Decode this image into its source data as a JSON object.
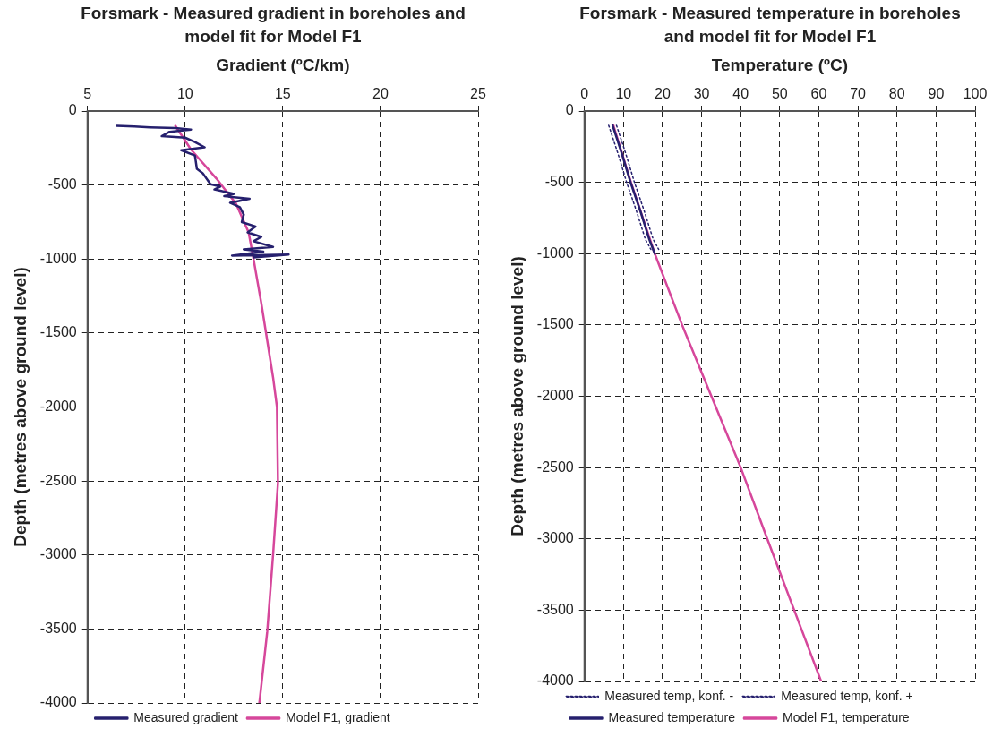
{
  "chart_data": [
    {
      "type": "line",
      "title": "Forsmark - Measured gradient in boreholes and model fit for Model F1",
      "xlabel": "Gradient (ºC/km)",
      "ylabel": "Depth (metres above ground level)",
      "xlim": [
        5,
        25
      ],
      "xticks": [
        5,
        10,
        15,
        20,
        25
      ],
      "ylim": [
        -4000,
        0
      ],
      "yticks": [
        0,
        -500,
        -1000,
        -1500,
        -2000,
        -2500,
        -3000,
        -3500,
        -4000
      ],
      "grid": true,
      "legend": "bottom",
      "marker": "none",
      "series": [
        {
          "name": "Measured gradient",
          "color": "#26206e",
          "x": [
            6.5,
            7.4,
            8.2,
            9.5,
            10.3,
            9.2,
            8.8,
            10.0,
            10.5,
            11.0,
            9.8,
            10.5,
            10.6,
            10.9,
            11.3,
            11.8,
            11.5,
            12.5,
            12.0,
            13.3,
            12.3,
            12.8,
            13.0,
            12.9,
            13.6,
            13.2,
            13.9,
            13.5,
            14.5,
            13.0,
            14.0,
            12.4,
            15.3,
            13.5
          ],
          "values": [
            -100,
            -105,
            -110,
            -115,
            -125,
            -140,
            -170,
            -180,
            -210,
            -245,
            -265,
            -300,
            -390,
            -420,
            -495,
            -510,
            -530,
            -560,
            -575,
            -593,
            -620,
            -650,
            -700,
            -750,
            -780,
            -820,
            -850,
            -880,
            -918,
            -935,
            -950,
            -977,
            -970,
            -990
          ]
        },
        {
          "name": "Model F1, gradient",
          "color": "#d6479b",
          "x": [
            9.5,
            10.3,
            11.6,
            12.6,
            13.25,
            13.5,
            13.9,
            14.5,
            14.7,
            14.75,
            14.5,
            14.2,
            13.8
          ],
          "values": [
            -100,
            -260,
            -456,
            -625,
            -820,
            -1000,
            -1300,
            -1800,
            -2000,
            -2515,
            -3000,
            -3520,
            -4000
          ]
        }
      ]
    },
    {
      "type": "line",
      "title": "Forsmark - Measured temperature in boreholes and model fit for Model F1",
      "xlabel": "Temperature (ºC)",
      "ylabel": "Depth (metres above ground level)",
      "xlim": [
        0,
        100
      ],
      "xticks": [
        0,
        10,
        20,
        30,
        40,
        50,
        60,
        70,
        80,
        90,
        100
      ],
      "ylim": [
        -4000,
        0
      ],
      "yticks": [
        0,
        -500,
        -1000,
        -1500,
        -2000,
        -2500,
        -3000,
        -3500,
        -4000
      ],
      "grid": true,
      "legend": "bottom",
      "marker": "none",
      "series": [
        {
          "name": "Measured temperature",
          "color": "#26206e",
          "x": [
            7.2,
            9.6,
            11.8,
            14.3,
            16.6,
            18.0
          ],
          "values": [
            -100,
            -300,
            -500,
            -700,
            -900,
            -1000
          ]
        },
        {
          "name": "Model F1, temperature",
          "color": "#d6479b",
          "x": [
            7.4,
            11.9,
            18.0,
            25.0,
            32.5,
            40.0,
            46.8,
            53.7,
            60.6
          ],
          "values": [
            -100,
            -500,
            -1000,
            -1500,
            -2000,
            -2500,
            -3000,
            -3500,
            -4000
          ]
        },
        {
          "name": "Measured temp, konf. -",
          "color": "#26206e",
          "line_style": "dotted",
          "x": [
            6.2,
            8.6,
            10.8,
            13.3,
            15.6,
            17.0
          ],
          "values": [
            -100,
            -300,
            -500,
            -700,
            -900,
            -970
          ]
        },
        {
          "name": "Measured temp, konf. +",
          "color": "#26206e",
          "line_style": "dotted",
          "x": [
            8.2,
            10.6,
            12.8,
            15.3,
            17.6,
            19.0
          ],
          "values": [
            -100,
            -300,
            -500,
            -700,
            -900,
            -970
          ]
        }
      ]
    }
  ]
}
